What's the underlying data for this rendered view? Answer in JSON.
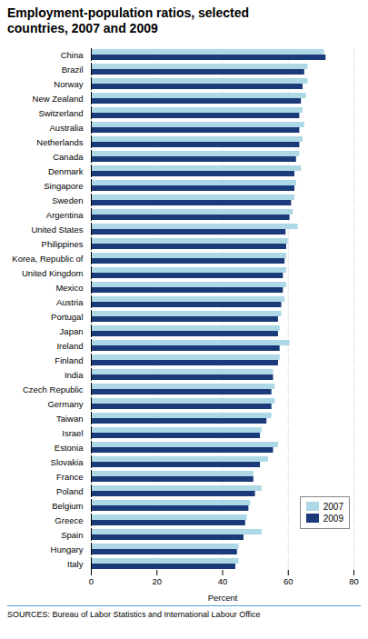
{
  "chart_data": {
    "type": "bar",
    "orientation": "horizontal",
    "title": "Employment-population ratios, selected\ncountries, 2007 and 2009",
    "xlabel": "Percent",
    "annotations": [
      "SOURCES: Bureau of Labor Statistics and International Labour Office"
    ],
    "categories": [
      "China",
      "Brazil",
      "Norway",
      "New Zealand",
      "Switzerland",
      "Australia",
      "Netherlands",
      "Canada",
      "Denmark",
      "Singapore",
      "Sweden",
      "Argentina",
      "United States",
      "Philippines",
      "Korea, Republic of",
      "United Kingdom",
      "Mexico",
      "Austria",
      "Portugal",
      "Japan",
      "Ireland",
      "Finland",
      "India",
      "Czech Republic",
      "Germany",
      "Taiwan",
      "Israel",
      "Estonia",
      "Slovakia",
      "France",
      "Poland",
      "Belgium",
      "Greece",
      "Spain",
      "Hungary",
      "Italy"
    ],
    "series": [
      {
        "name": "2007",
        "color": "#add8e6",
        "values": [
          71.0,
          66.0,
          66.0,
          65.5,
          64.5,
          65.0,
          64.5,
          63.5,
          64.0,
          62.5,
          62.0,
          61.5,
          63.0,
          60.0,
          59.5,
          59.5,
          59.5,
          59.0,
          58.0,
          57.5,
          60.5,
          57.5,
          55.5,
          56.0,
          56.0,
          55.0,
          52.0,
          57.0,
          54.0,
          49.5,
          52.0,
          48.5,
          47.5,
          52.0,
          45.0,
          45.0
        ]
      },
      {
        "name": "2009",
        "color": "#1a3a7a",
        "values": [
          71.5,
          65.0,
          64.5,
          64.0,
          63.5,
          63.5,
          63.5,
          62.5,
          62.0,
          62.0,
          61.0,
          60.5,
          59.3,
          59.5,
          59.0,
          58.5,
          58.5,
          58.0,
          57.0,
          57.0,
          57.5,
          57.0,
          55.5,
          55.0,
          55.0,
          53.5,
          51.5,
          55.5,
          51.5,
          49.5,
          50.0,
          48.0,
          47.0,
          46.5,
          44.5,
          44.0
        ]
      }
    ],
    "xlim": [
      0,
      80
    ],
    "xticks": [
      0,
      20,
      40,
      60,
      80
    ],
    "grid": true,
    "legend": "lower right"
  }
}
